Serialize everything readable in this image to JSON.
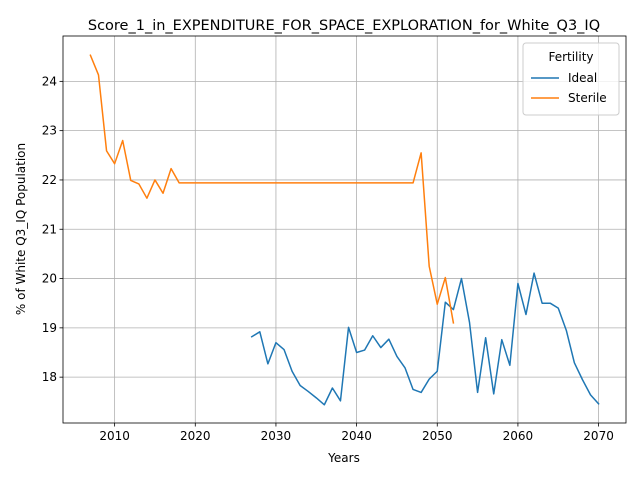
{
  "chart_data": {
    "type": "line",
    "title": "Score_1_in_EXPENDITURE_FOR_SPACE_EXPLORATION_for_White_Q3_IQ",
    "xlabel": "Years",
    "ylabel": "% of White Q3_IQ Population",
    "xlim": [
      2003.6,
      2073.4
    ],
    "ylim": [
      17.07,
      24.92
    ],
    "xticks": [
      2010,
      2020,
      2030,
      2040,
      2050,
      2060,
      2070
    ],
    "yticks": [
      18,
      19,
      20,
      21,
      22,
      23,
      24
    ],
    "grid": true,
    "legend": {
      "title": "Fertility",
      "placement": "top-right"
    },
    "series": [
      {
        "name": "Ideal",
        "color": "#1f77b4",
        "x": [
          2027,
          2028,
          2029,
          2030,
          2031,
          2032,
          2033,
          2034,
          2035,
          2036,
          2037,
          2038,
          2039,
          2040,
          2041,
          2042,
          2043,
          2044,
          2045,
          2046,
          2047,
          2048,
          2049,
          2050,
          2051,
          2052,
          2053,
          2054,
          2055,
          2056,
          2057,
          2058,
          2059,
          2060,
          2061,
          2062,
          2063,
          2064,
          2065,
          2066,
          2067,
          2068,
          2069,
          2070
        ],
        "y": [
          18.82,
          18.92,
          18.27,
          18.7,
          18.56,
          18.12,
          17.83,
          17.71,
          17.58,
          17.44,
          17.78,
          17.52,
          19.01,
          18.5,
          18.55,
          18.84,
          18.6,
          18.77,
          18.42,
          18.19,
          17.75,
          17.69,
          17.96,
          18.12,
          19.52,
          19.37,
          20.0,
          19.11,
          17.69,
          18.8,
          17.66,
          18.76,
          18.24,
          19.9,
          19.27,
          20.11,
          19.5,
          19.5,
          19.4,
          18.95,
          18.29,
          17.95,
          17.64,
          17.46
        ]
      },
      {
        "name": "Sterile",
        "color": "#ff7f0e",
        "x": [
          2007,
          2008,
          2009,
          2010,
          2011,
          2012,
          2013,
          2014,
          2015,
          2016,
          2017,
          2018,
          2019,
          2020,
          2025,
          2030,
          2035,
          2040,
          2045,
          2046,
          2047,
          2048,
          2049,
          2050,
          2051,
          2052
        ],
        "y": [
          24.53,
          24.13,
          22.59,
          22.33,
          22.8,
          21.99,
          21.92,
          21.63,
          22.0,
          21.73,
          22.23,
          21.94,
          21.94,
          21.94,
          21.94,
          21.94,
          21.94,
          21.94,
          21.94,
          21.94,
          21.94,
          22.55,
          20.25,
          19.48,
          20.02,
          19.1
        ]
      }
    ]
  }
}
